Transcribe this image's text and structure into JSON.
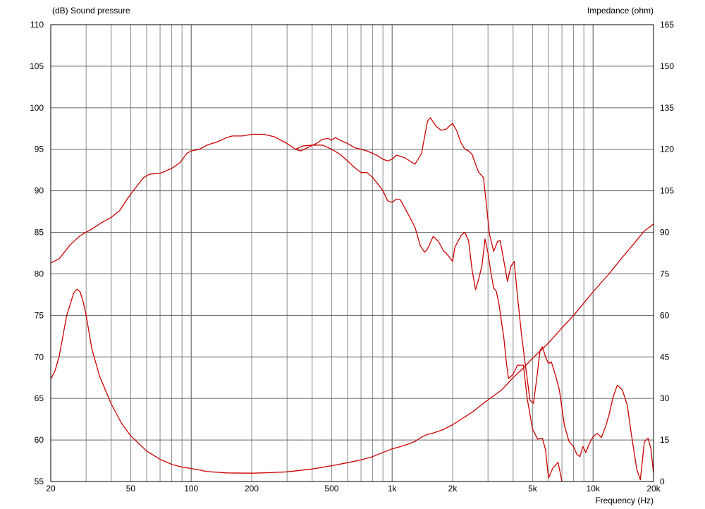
{
  "chart_data": {
    "type": "line",
    "left_axis_label": "(dB)  Sound pressure",
    "right_axis_label": "Impedance  (ohm)",
    "x_axis_label": "Frequency  (Hz)",
    "x_scale": "log",
    "x_range": [
      20,
      20000
    ],
    "left_y_range": [
      55,
      110
    ],
    "right_y_range": [
      0,
      165
    ],
    "grid": true,
    "line_color": "#cc0000",
    "x_ticks": [
      {
        "value": 20,
        "label": "20"
      },
      {
        "value": 50,
        "label": "50"
      },
      {
        "value": 100,
        "label": "100"
      },
      {
        "value": 200,
        "label": "200"
      },
      {
        "value": 500,
        "label": "500"
      },
      {
        "value": 1000,
        "label": "1k"
      },
      {
        "value": 2000,
        "label": "2k"
      },
      {
        "value": 5000,
        "label": "5k"
      },
      {
        "value": 10000,
        "label": "10k"
      },
      {
        "value": 20000,
        "label": "20k"
      }
    ],
    "left_y_ticks": [
      "110",
      "105",
      "100",
      "95",
      "90",
      "85",
      "80",
      "75",
      "70",
      "65",
      "60",
      "55"
    ],
    "right_y_ticks": [
      "165",
      "150",
      "135",
      "120",
      "105",
      "90",
      "75",
      "60",
      "45",
      "30",
      "15",
      "0"
    ],
    "series": [
      {
        "axis": "left",
        "points": [
          [
            20,
            81.3
          ],
          [
            22,
            81.8
          ],
          [
            25,
            83.5
          ],
          [
            28,
            84.6
          ],
          [
            32,
            85.4
          ],
          [
            36,
            86.2
          ],
          [
            40,
            86.8
          ],
          [
            44,
            87.6
          ],
          [
            48,
            89.0
          ],
          [
            53,
            90.4
          ],
          [
            58,
            91.6
          ],
          [
            62,
            92.0
          ],
          [
            70,
            92.1
          ],
          [
            80,
            92.7
          ],
          [
            88,
            93.4
          ],
          [
            95,
            94.5
          ],
          [
            100,
            94.8
          ],
          [
            110,
            95.0
          ],
          [
            120,
            95.5
          ],
          [
            135,
            95.9
          ],
          [
            150,
            96.4
          ],
          [
            160,
            96.6
          ],
          [
            180,
            96.6
          ],
          [
            200,
            96.8
          ],
          [
            230,
            96.8
          ],
          [
            260,
            96.5
          ],
          [
            300,
            95.7
          ],
          [
            330,
            95.0
          ],
          [
            350,
            94.8
          ],
          [
            380,
            95.2
          ],
          [
            420,
            95.7
          ],
          [
            450,
            96.2
          ],
          [
            480,
            96.3
          ],
          [
            500,
            96.1
          ],
          [
            520,
            96.4
          ],
          [
            550,
            96.1
          ],
          [
            600,
            95.7
          ],
          [
            650,
            95.2
          ],
          [
            700,
            95.0
          ],
          [
            750,
            94.8
          ],
          [
            800,
            94.5
          ],
          [
            850,
            94.2
          ],
          [
            900,
            93.8
          ],
          [
            950,
            93.6
          ],
          [
            1000,
            93.8
          ],
          [
            1050,
            94.3
          ],
          [
            1150,
            94.0
          ],
          [
            1300,
            93.2
          ],
          [
            1400,
            94.5
          ],
          [
            1500,
            98.4
          ],
          [
            1550,
            98.8
          ],
          [
            1650,
            97.8
          ],
          [
            1750,
            97.3
          ],
          [
            1850,
            97.4
          ],
          [
            1950,
            97.9
          ],
          [
            2000,
            98.1
          ],
          [
            2100,
            97.2
          ],
          [
            2200,
            95.8
          ],
          [
            2300,
            95.0
          ],
          [
            2400,
            94.8
          ],
          [
            2500,
            94.4
          ],
          [
            2600,
            93.2
          ],
          [
            2700,
            92.2
          ],
          [
            2850,
            91.6
          ],
          [
            2950,
            88.2
          ],
          [
            3050,
            84.8
          ],
          [
            3200,
            82.7
          ],
          [
            3350,
            83.9
          ],
          [
            3450,
            84.0
          ],
          [
            3600,
            81.5
          ],
          [
            3750,
            79.1
          ],
          [
            3900,
            80.9
          ],
          [
            4050,
            81.5
          ],
          [
            4200,
            77.5
          ],
          [
            4400,
            72.8
          ],
          [
            4550,
            70.0
          ],
          [
            4700,
            67.4
          ],
          [
            4850,
            64.8
          ],
          [
            5050,
            64.4
          ],
          [
            5250,
            67.5
          ],
          [
            5450,
            70.8
          ],
          [
            5600,
            71.2
          ],
          [
            5800,
            70.0
          ],
          [
            6000,
            69.2
          ],
          [
            6200,
            69.4
          ],
          [
            6500,
            67.8
          ],
          [
            6800,
            66.0
          ],
          [
            7200,
            61.8
          ],
          [
            7600,
            59.8
          ],
          [
            8000,
            59.2
          ],
          [
            8300,
            58.3
          ],
          [
            8600,
            58.0
          ],
          [
            8900,
            59.2
          ],
          [
            9200,
            58.5
          ],
          [
            9600,
            59.6
          ],
          [
            10000,
            60.4
          ],
          [
            10500,
            60.8
          ],
          [
            11000,
            60.3
          ],
          [
            11500,
            61.5
          ],
          [
            12000,
            63.0
          ],
          [
            12600,
            65.2
          ],
          [
            13200,
            66.6
          ],
          [
            14000,
            66.0
          ],
          [
            14800,
            64.2
          ],
          [
            15500,
            60.7
          ],
          [
            16500,
            56.5
          ],
          [
            17200,
            55.2
          ],
          [
            18000,
            59.8
          ],
          [
            18800,
            60.2
          ],
          [
            19400,
            59.0
          ],
          [
            20000,
            56.0
          ]
        ]
      },
      {
        "axis": "left",
        "points": [
          [
            330,
            95.0
          ],
          [
            360,
            95.4
          ],
          [
            400,
            95.5
          ],
          [
            450,
            95.5
          ],
          [
            500,
            95.0
          ],
          [
            550,
            94.4
          ],
          [
            600,
            93.6
          ],
          [
            650,
            92.8
          ],
          [
            700,
            92.2
          ],
          [
            750,
            92.2
          ],
          [
            800,
            91.6
          ],
          [
            850,
            90.8
          ],
          [
            900,
            90.0
          ],
          [
            950,
            88.8
          ],
          [
            1000,
            88.6
          ],
          [
            1050,
            89.0
          ],
          [
            1100,
            88.9
          ],
          [
            1200,
            87.2
          ],
          [
            1300,
            85.6
          ],
          [
            1380,
            83.4
          ],
          [
            1450,
            82.6
          ],
          [
            1500,
            83.0
          ],
          [
            1600,
            84.5
          ],
          [
            1700,
            83.9
          ],
          [
            1800,
            82.8
          ],
          [
            1900,
            82.2
          ],
          [
            2000,
            81.5
          ],
          [
            2050,
            83.2
          ],
          [
            2200,
            84.6
          ],
          [
            2300,
            85.0
          ],
          [
            2400,
            84.0
          ],
          [
            2500,
            80.5
          ],
          [
            2600,
            78.1
          ],
          [
            2700,
            79.4
          ],
          [
            2800,
            81.0
          ],
          [
            2900,
            84.2
          ],
          [
            3000,
            82.5
          ],
          [
            3100,
            80.2
          ],
          [
            3200,
            78.3
          ],
          [
            3300,
            77.9
          ],
          [
            3400,
            76.4
          ],
          [
            3600,
            72.2
          ],
          [
            3700,
            69.4
          ],
          [
            3800,
            67.4
          ],
          [
            4000,
            67.9
          ],
          [
            4200,
            69.0
          ],
          [
            4500,
            69.0
          ],
          [
            4700,
            65.0
          ],
          [
            5000,
            61.3
          ],
          [
            5300,
            60.1
          ],
          [
            5600,
            60.2
          ],
          [
            5800,
            58.8
          ],
          [
            6000,
            55.4
          ],
          [
            6300,
            56.6
          ],
          [
            6700,
            57.3
          ],
          [
            7000,
            55.0
          ]
        ]
      },
      {
        "axis": "right",
        "points": [
          [
            20,
            37
          ],
          [
            21,
            40
          ],
          [
            22,
            45
          ],
          [
            24,
            60
          ],
          [
            26,
            68
          ],
          [
            27,
            69.5
          ],
          [
            28,
            68.5
          ],
          [
            29,
            65
          ],
          [
            30,
            60
          ],
          [
            32,
            48
          ],
          [
            35,
            38
          ],
          [
            40,
            28
          ],
          [
            45,
            21
          ],
          [
            50,
            16.5
          ],
          [
            60,
            11
          ],
          [
            70,
            8
          ],
          [
            80,
            6.2
          ],
          [
            90,
            5.2
          ],
          [
            100,
            4.7
          ],
          [
            120,
            3.6
          ],
          [
            150,
            3.1
          ],
          [
            200,
            3.0
          ],
          [
            250,
            3.2
          ],
          [
            300,
            3.5
          ],
          [
            400,
            4.5
          ],
          [
            500,
            5.7
          ],
          [
            600,
            6.8
          ],
          [
            700,
            7.8
          ],
          [
            800,
            9
          ],
          [
            900,
            10.5
          ],
          [
            1000,
            11.8
          ],
          [
            1100,
            12.6
          ],
          [
            1200,
            13.5
          ],
          [
            1300,
            14.5
          ],
          [
            1400,
            16
          ],
          [
            1500,
            17
          ],
          [
            1600,
            17.5
          ],
          [
            1800,
            18.8
          ],
          [
            2000,
            20.5
          ],
          [
            2500,
            25
          ],
          [
            3000,
            29.5
          ],
          [
            3500,
            33
          ],
          [
            4000,
            37.5
          ],
          [
            4500,
            41
          ],
          [
            5000,
            44.5
          ],
          [
            6000,
            50
          ],
          [
            7000,
            55.5
          ],
          [
            8000,
            60
          ],
          [
            9000,
            64.5
          ],
          [
            10000,
            68.5
          ],
          [
            12000,
            75
          ],
          [
            14000,
            81
          ],
          [
            16000,
            86
          ],
          [
            18000,
            90.5
          ],
          [
            20000,
            93
          ]
        ]
      }
    ]
  }
}
